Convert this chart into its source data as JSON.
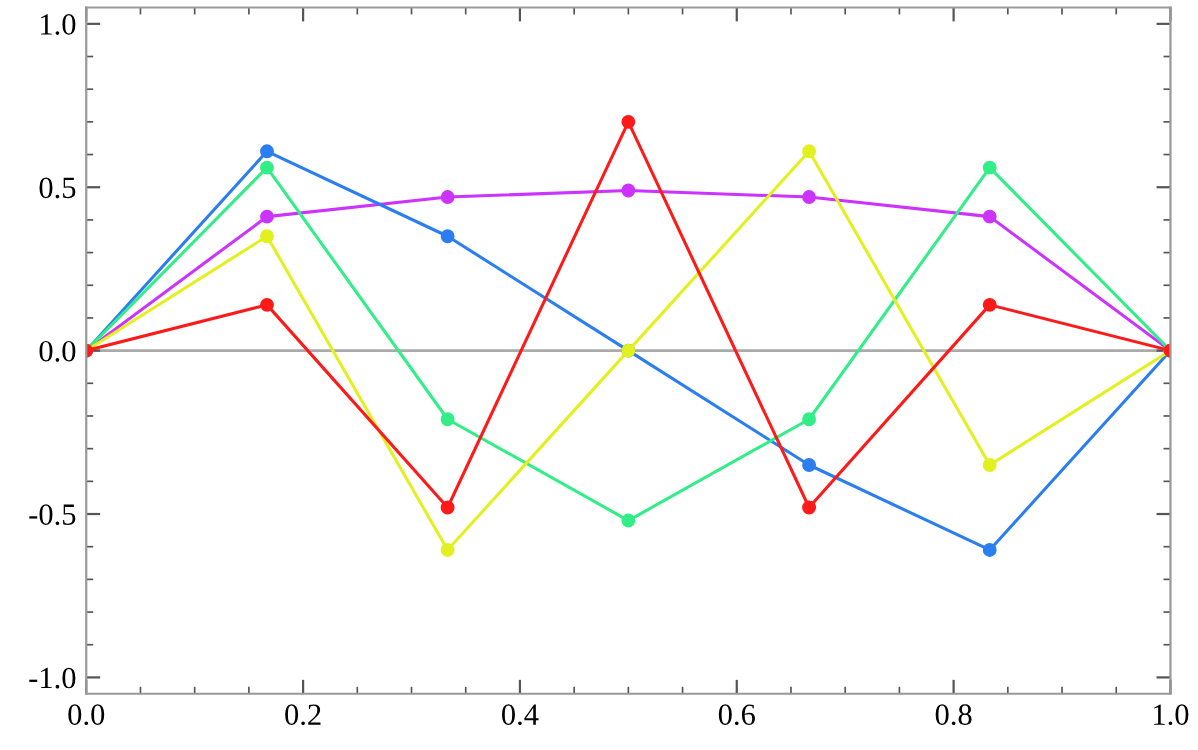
{
  "chart_data": {
    "type": "line",
    "x": [
      0,
      0.1667,
      0.3333,
      0.5,
      0.6667,
      0.8333,
      1
    ],
    "series": [
      {
        "color": "#cc33ff",
        "values": [
          0,
          0.41,
          0.47,
          0.49,
          0.47,
          0.41,
          0
        ]
      },
      {
        "color": "#2a7ef0",
        "values": [
          0,
          0.61,
          0.35,
          0.0,
          -0.35,
          -0.61,
          0
        ]
      },
      {
        "color": "#33ee88",
        "values": [
          0,
          0.56,
          -0.21,
          -0.52,
          -0.21,
          0.56,
          0
        ]
      },
      {
        "color": "#e2f020",
        "values": [
          0,
          0.35,
          -0.61,
          0.0,
          0.61,
          -0.35,
          0
        ]
      },
      {
        "color": "#ff1a1a",
        "values": [
          0,
          0.14,
          -0.48,
          0.7,
          -0.48,
          0.14,
          0
        ]
      }
    ],
    "xlim": [
      0,
      1
    ],
    "ylim": [
      -1.05,
      1.05
    ],
    "xticks": [
      {
        "value": 0,
        "label": "0.0"
      },
      {
        "value": 0.2,
        "label": "0.2"
      },
      {
        "value": 0.4,
        "label": "0.4"
      },
      {
        "value": 0.6,
        "label": "0.6"
      },
      {
        "value": 0.8,
        "label": "0.8"
      },
      {
        "value": 1,
        "label": "1.0"
      }
    ],
    "yticks": [
      {
        "value": -1,
        "label": "-1.0"
      },
      {
        "value": -0.5,
        "label": "-0.5"
      },
      {
        "value": 0,
        "label": "0.0"
      },
      {
        "value": 0.5,
        "label": "0.5"
      },
      {
        "value": 1,
        "label": "1.0"
      }
    ],
    "ref_lines": [
      {
        "axis": "y",
        "value": 0,
        "color": "#aaaaaa"
      }
    ],
    "marker": "circle",
    "line_style": "solid",
    "grid": false,
    "legend": false
  }
}
